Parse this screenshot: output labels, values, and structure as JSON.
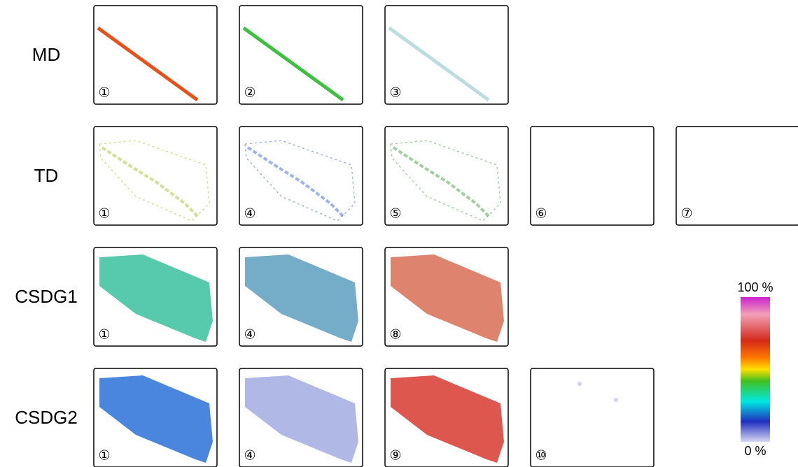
{
  "rows": [
    {
      "label": "MD",
      "panels": [
        "①",
        "②",
        "③"
      ]
    },
    {
      "label": "TD",
      "panels": [
        "①",
        "④",
        "⑤",
        "⑥",
        "⑦"
      ]
    },
    {
      "label": "CSDG1",
      "panels": [
        "①",
        "④",
        "⑧"
      ]
    },
    {
      "label": "CSDG2",
      "panels": [
        "①",
        "④",
        "⑨",
        "⑩"
      ]
    }
  ],
  "colorbar": {
    "max_label": "100 %",
    "min_label": "0 %"
  }
}
